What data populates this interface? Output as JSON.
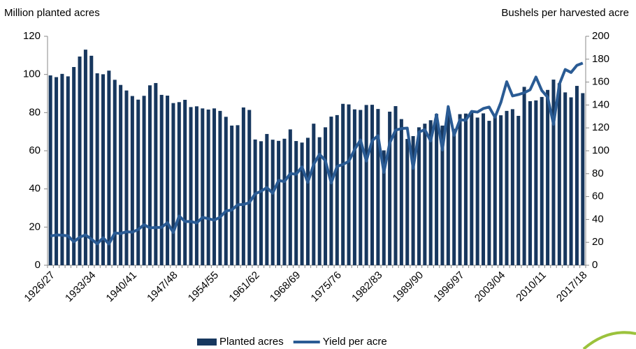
{
  "chart_data": {
    "type": "bar_line",
    "ylabel": "Million planted acres",
    "y2label": "Bushels per harvested acre",
    "categories": [
      "1926/27",
      null,
      null,
      null,
      null,
      null,
      null,
      "1933/34",
      null,
      null,
      null,
      null,
      null,
      null,
      "1940/41",
      null,
      null,
      null,
      null,
      null,
      null,
      "1947/48",
      null,
      null,
      null,
      null,
      null,
      null,
      "1954/55",
      null,
      null,
      null,
      null,
      null,
      null,
      "1961/62",
      null,
      null,
      null,
      null,
      null,
      null,
      "1968/69",
      null,
      null,
      null,
      null,
      null,
      null,
      "1975/76",
      null,
      null,
      null,
      null,
      null,
      null,
      "1982/83",
      null,
      null,
      null,
      null,
      null,
      null,
      "1989/90",
      null,
      null,
      null,
      null,
      null,
      null,
      "1996/97",
      null,
      null,
      null,
      null,
      null,
      null,
      "2003/04",
      null,
      null,
      null,
      null,
      null,
      null,
      "2010/11",
      null,
      null,
      null,
      null,
      null,
      null,
      "2017/18"
    ],
    "series": [
      {
        "name": "Planted acres",
        "color": "#17375e",
        "values": [
          99.5,
          98.6,
          100.3,
          99.0,
          103.9,
          109.4,
          113.0,
          109.8,
          100.6,
          100.1,
          102.0,
          97.2,
          94.5,
          91.6,
          88.7,
          86.8,
          88.8,
          94.3,
          95.5,
          89.3,
          88.9,
          85.0,
          85.5,
          86.7,
          82.9,
          83.3,
          82.2,
          81.6,
          82.2,
          80.9,
          77.8,
          73.2,
          73.4,
          82.7,
          81.4,
          65.9,
          65.0,
          68.8,
          65.8,
          65.2,
          66.3,
          71.2,
          65.1,
          64.3,
          66.8,
          74.2,
          67.1,
          72.3,
          77.9,
          78.7,
          84.6,
          84.3,
          81.7,
          81.4,
          84.0,
          84.1,
          81.9,
          60.2,
          80.5,
          83.4,
          76.6,
          66.2,
          67.7,
          72.3,
          74.2,
          76.0,
          79.3,
          73.2,
          79.2,
          71.5,
          79.2,
          79.5,
          80.2,
          77.4,
          79.6,
          75.7,
          78.9,
          78.6,
          80.9,
          81.8,
          78.3,
          93.5,
          86.0,
          86.4,
          88.2,
          91.9,
          97.3,
          95.4,
          90.6,
          88.0,
          94.0,
          90.2
        ]
      },
      {
        "name": "Yield per acre",
        "color": "#2a5b94",
        "axis": "y2",
        "values": [
          25.5,
          26.5,
          26.2,
          25.7,
          20.5,
          24.5,
          26.5,
          22.8,
          18.7,
          24.0,
          18.6,
          28.2,
          27.7,
          29.3,
          28.9,
          31.2,
          35.4,
          32.6,
          33.0,
          33.1,
          37.2,
          28.6,
          43.0,
          38.2,
          38.2,
          36.9,
          41.8,
          40.7,
          39.4,
          42.0,
          47.4,
          48.3,
          52.8,
          53.1,
          54.7,
          62.4,
          64.7,
          67.9,
          62.9,
          74.1,
          73.1,
          80.1,
          79.5,
          85.9,
          72.4,
          88.1,
          97.0,
          91.3,
          71.9,
          86.4,
          88.0,
          90.8,
          101.0,
          109.5,
          91.0,
          108.9,
          113.2,
          81.1,
          106.7,
          118.0,
          119.4,
          119.8,
          84.6,
          116.3,
          118.5,
          108.6,
          131.5,
          100.7,
          138.6,
          113.5,
          127.1,
          126.7,
          134.4,
          133.8,
          136.9,
          138.2,
          129.3,
          142.2,
          160.3,
          147.9,
          149.1,
          150.7,
          153.3,
          164.4,
          152.6,
          146.8,
          123.1,
          158.1,
          171.0,
          168.4,
          174.6,
          176.6
        ]
      }
    ],
    "ylim": [
      0,
      120
    ],
    "yticks": [
      0,
      20,
      40,
      60,
      80,
      100,
      120
    ],
    "y2lim": [
      0,
      200
    ],
    "y2ticks": [
      0,
      20,
      40,
      60,
      80,
      100,
      120,
      140,
      160,
      180,
      200
    ]
  }
}
